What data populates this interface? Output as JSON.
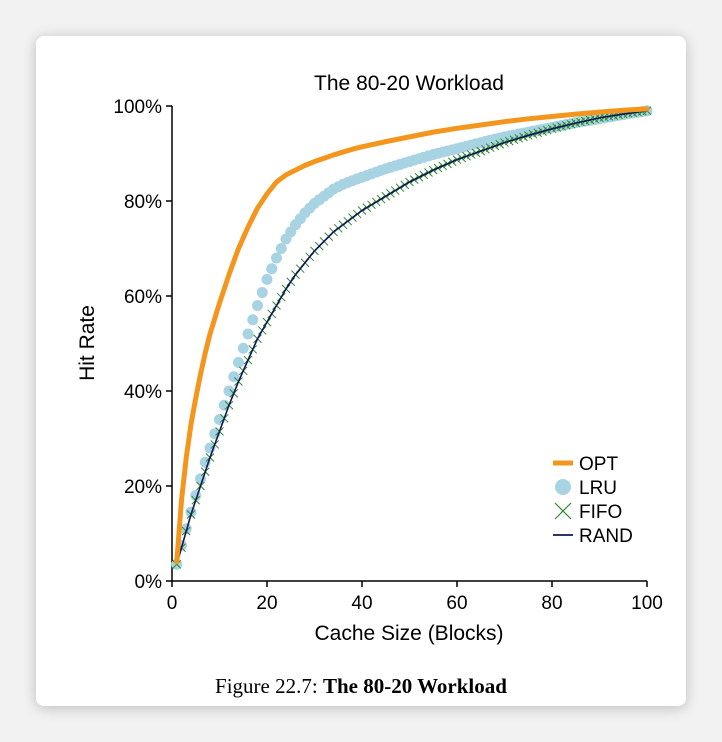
{
  "caption": {
    "prefix": "Figure 22.7:",
    "title": "The 80-20 Workload"
  },
  "colors": {
    "opt": "#f4961d",
    "lru": "#a8d3e3",
    "fifo": "#2e8b2e",
    "rand": "#14145a"
  },
  "chart_data": {
    "type": "line",
    "title": "The 80-20 Workload",
    "xlabel": "Cache Size (Blocks)",
    "ylabel": "Hit Rate",
    "xlim": [
      0,
      100
    ],
    "ylim": [
      0,
      100
    ],
    "x_ticks": [
      0,
      20,
      40,
      60,
      80,
      100
    ],
    "y_ticks": [
      0,
      20,
      40,
      60,
      80,
      100
    ],
    "y_tick_labels": [
      "0%",
      "20%",
      "40%",
      "60%",
      "80%",
      "100%"
    ],
    "x_tick_labels": [
      "0",
      "20",
      "40",
      "60",
      "80",
      "100"
    ],
    "legend_position": "bottom-right",
    "x": [
      1,
      2,
      3,
      4,
      5,
      6,
      7,
      8,
      10,
      12,
      14,
      16,
      18,
      20,
      22,
      24,
      26,
      28,
      30,
      32,
      34,
      36,
      38,
      40,
      45,
      50,
      55,
      60,
      65,
      70,
      75,
      80,
      85,
      90,
      95,
      100
    ],
    "series": [
      {
        "name": "OPT",
        "values": [
          4,
          17,
          26,
          33,
          38.5,
          43.5,
          48,
          52,
          58.5,
          64.5,
          70,
          74.5,
          78.5,
          81.5,
          84,
          85.5,
          86.5,
          87.5,
          88.3,
          89,
          89.7,
          90.3,
          90.9,
          91.4,
          92.5,
          93.5,
          94.5,
          95.3,
          96,
          96.7,
          97.3,
          97.8,
          98.3,
          98.7,
          99.1,
          99.4
        ]
      },
      {
        "name": "LRU",
        "values": [
          3.5,
          7.5,
          11,
          14.5,
          18,
          21.5,
          25,
          28,
          34,
          40,
          46,
          52,
          58,
          63.5,
          68,
          72,
          75,
          77.5,
          79.5,
          81,
          82.5,
          83.5,
          84.3,
          85,
          86.8,
          88.3,
          89.8,
          91,
          92.3,
          93.5,
          94.5,
          95.5,
          96.5,
          97.3,
          98.2,
          99
        ]
      },
      {
        "name": "FIFO",
        "values": [
          3.5,
          7,
          10.5,
          14,
          17,
          20,
          23,
          26,
          31.5,
          37,
          42,
          46.5,
          51,
          54.5,
          58,
          61.5,
          64.5,
          67,
          69.5,
          71.5,
          73.5,
          75,
          76.5,
          78,
          81,
          84,
          86.5,
          88.7,
          90.5,
          92.3,
          93.8,
          95.2,
          96.4,
          97.5,
          98.3,
          99
        ]
      },
      {
        "name": "RAND",
        "values": [
          3.5,
          7,
          10.5,
          14,
          17,
          20,
          23,
          26,
          31.5,
          37,
          42,
          46.5,
          51,
          54.5,
          58,
          61.5,
          64.5,
          67,
          69.5,
          71.5,
          73.5,
          75,
          76.5,
          78,
          81,
          84,
          86.5,
          88.7,
          90.5,
          92.3,
          93.8,
          95.2,
          96.4,
          97.5,
          98.3,
          99
        ]
      }
    ]
  }
}
